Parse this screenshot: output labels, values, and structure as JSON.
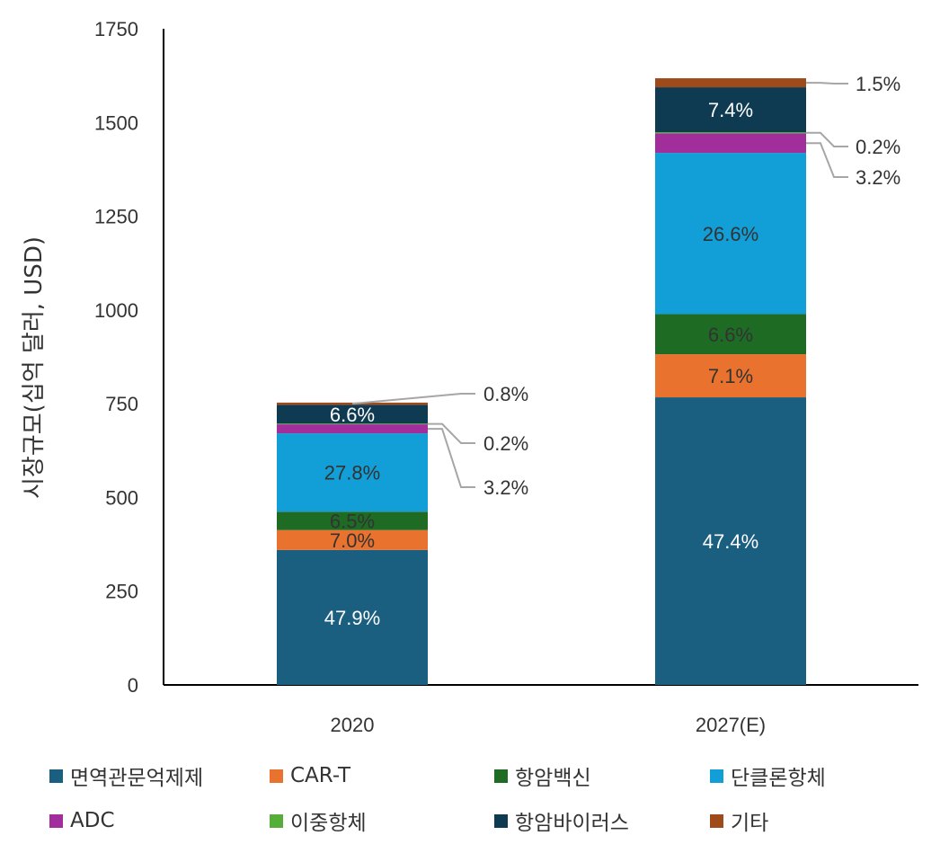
{
  "chart_data": {
    "type": "bar",
    "stacked": true,
    "categories": [
      "2020",
      "2027(E)"
    ],
    "ylabel": "시장규모(십억 달러, USD)",
    "xlabel": "",
    "ylim": [
      0,
      1750
    ],
    "yticks": [
      0,
      250,
      500,
      750,
      1000,
      1250,
      1500,
      1750
    ],
    "ytick_labels": [
      "0",
      "250",
      "500",
      "750",
      "1000",
      "1250",
      "1500",
      "1750"
    ],
    "grid": false,
    "legend_position": "bottom",
    "series": [
      {
        "name": "면역관문억제제",
        "color": "#1A5E80",
        "values": [
          360,
          767
        ],
        "labels": [
          "47.9%",
          "47.4%"
        ],
        "label_color": "#ffffff"
      },
      {
        "name": "CAR-T",
        "color": "#E9722F",
        "values": [
          53,
          115
        ],
        "labels": [
          "7.0%",
          "7.1%"
        ],
        "label_color": "#333333"
      },
      {
        "name": "항암백신",
        "color": "#1E6B24",
        "values": [
          49,
          107
        ],
        "labels": [
          "6.5%",
          "6.6%"
        ],
        "label_color": "#333333"
      },
      {
        "name": "단클론항체",
        "color": "#129ED6",
        "values": [
          209,
          430
        ],
        "labels": [
          "27.8%",
          "26.6%"
        ],
        "label_color": "#333333"
      },
      {
        "name": "ADC",
        "color": "#A12E9B",
        "values": [
          24,
          52
        ],
        "labels": [
          "3.2%",
          "3.2%"
        ],
        "label_color": "#333333",
        "callout": true
      },
      {
        "name": "이중항체",
        "color": "#55AE3A",
        "values": [
          2,
          3
        ],
        "labels": [
          "0.2%",
          "0.2%"
        ],
        "label_color": "#333333",
        "callout": true
      },
      {
        "name": "항암바이러스",
        "color": "#0E3A52",
        "values": [
          50,
          120
        ],
        "labels": [
          "6.6%",
          "7.4%"
        ],
        "label_color": "#ffffff"
      },
      {
        "name": "기타",
        "color": "#9E4A1B",
        "values": [
          6,
          24
        ],
        "labels": [
          "0.8%",
          "1.5%"
        ],
        "label_color": "#333333",
        "callout": true
      }
    ]
  }
}
